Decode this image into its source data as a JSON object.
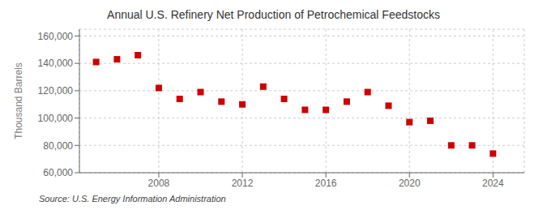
{
  "chart_data": {
    "type": "scatter",
    "title": "Annual U.S. Refinery Net Production of Petrochemical Feedstocks",
    "ylabel": "Thousand Barrels",
    "annotations": [
      "Source: U.S. Energy Information Administration"
    ],
    "x": [
      2005,
      2006,
      2007,
      2008,
      2009,
      2010,
      2011,
      2012,
      2013,
      2014,
      2015,
      2016,
      2017,
      2018,
      2019,
      2020,
      2021,
      2022,
      2023,
      2024
    ],
    "values": [
      141000,
      143000,
      146000,
      122000,
      114000,
      119000,
      112000,
      110000,
      123000,
      114000,
      106000,
      106000,
      112000,
      119000,
      109000,
      97000,
      98000,
      80000,
      80000,
      74000
    ],
    "color": "#cc0000",
    "marker": "square",
    "grid": true,
    "xlim": [
      2004.2,
      2025.5
    ],
    "xticks": [
      2008,
      2012,
      2016,
      2020,
      2024
    ],
    "ylim": [
      60000,
      165000
    ],
    "yticks": [
      {
        "value": 60000,
        "label": "60,000"
      },
      {
        "value": 80000,
        "label": "80,000"
      },
      {
        "value": 100000,
        "label": "100,000"
      },
      {
        "value": 120000,
        "label": "120,000"
      },
      {
        "value": 140000,
        "label": "140,000"
      },
      {
        "value": 160000,
        "label": "160,000"
      }
    ]
  }
}
